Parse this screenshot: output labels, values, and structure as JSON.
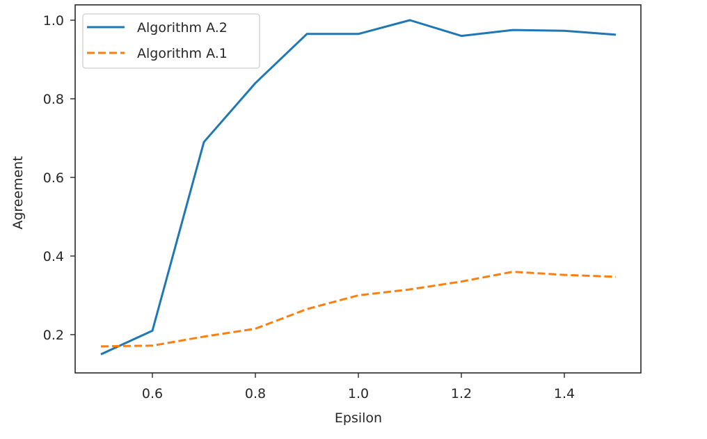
{
  "chart_data": {
    "type": "line",
    "title": "",
    "xlabel": "Epsilon",
    "ylabel": "Agreement",
    "x": [
      0.5,
      0.6,
      0.7,
      0.8,
      0.9,
      1.0,
      1.1,
      1.2,
      1.3,
      1.4,
      1.5
    ],
    "series": [
      {
        "name": "Algorithm A.2",
        "color": "#1f77b4",
        "linestyle": "solid",
        "values": [
          0.15,
          0.21,
          0.69,
          0.84,
          0.965,
          0.965,
          1.0,
          0.96,
          0.975,
          0.973,
          0.963
        ]
      },
      {
        "name": "Algorithm A.1",
        "color": "#ff7f0e",
        "linestyle": "dashed",
        "values": [
          0.17,
          0.172,
          0.195,
          0.215,
          0.265,
          0.3,
          0.315,
          0.335,
          0.36,
          0.352,
          0.347
        ]
      }
    ],
    "xticks": [
      "0.6",
      "0.8",
      "1.0",
      "1.2",
      "1.4"
    ],
    "yticks": [
      "0.2",
      "0.4",
      "0.6",
      "0.8",
      "1.0"
    ],
    "xlim": [
      0.45,
      1.55
    ],
    "ylim": [
      0.1,
      1.04
    ],
    "grid": false,
    "legend_position": "upper left"
  }
}
